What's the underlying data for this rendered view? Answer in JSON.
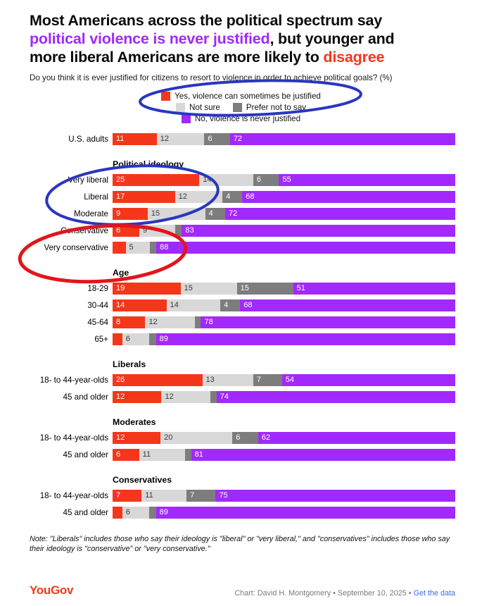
{
  "title": {
    "line1": "Most Americans across the political spectrum say",
    "line2_highlight": "political violence is never justified",
    "line2_rest": ", but younger and",
    "line3": "more liberal Americans are more likely to ",
    "line3_highlight": "disagree"
  },
  "subtitle": "Do you think it is ever justified for citizens to resort to violence in order to achieve political goals? (%)",
  "legend": [
    {
      "label": "Yes, violence can sometimes be justified",
      "color": "#f4371b"
    },
    {
      "label": "Not sure",
      "color": "#d8d8d8"
    },
    {
      "label": "Prefer not to say",
      "color": "#7d7d7d"
    },
    {
      "label": "No, violence is never justified",
      "color": "#a229fc"
    }
  ],
  "annotation_colors": {
    "blue": "#2936c0",
    "red": "#e3151c"
  },
  "chart_data": {
    "type": "bar",
    "stacked": true,
    "orientation": "horizontal",
    "unit": "%",
    "xlim": [
      0,
      100
    ],
    "series": [
      "Yes, violence can sometimes be justified",
      "Not sure",
      "Prefer not to say",
      "No, violence is never justified"
    ],
    "series_keys": [
      "yes",
      "not-sure",
      "prefer-not-to-say",
      "never-justified"
    ],
    "series_colors": [
      "#f4371b",
      "#d8d8d8",
      "#7d7d7d",
      "#a229fc"
    ],
    "groups": [
      {
        "header": "",
        "rows": [
          {
            "label": "U.S. adults",
            "values": [
              11,
              12,
              6,
              72
            ],
            "labels": [
              "11",
              "12",
              "6",
              "72"
            ]
          }
        ]
      },
      {
        "header": "Political ideology",
        "rows": [
          {
            "label": "Very liberal",
            "values": [
              25,
              14,
              6,
              55
            ],
            "labels": [
              "25",
              "14",
              "6",
              "55"
            ]
          },
          {
            "label": "Liberal",
            "values": [
              17,
              12,
              4,
              68
            ],
            "labels": [
              "17",
              "12",
              "4",
              "68"
            ]
          },
          {
            "label": "Moderate",
            "values": [
              9,
              15,
              4,
              72
            ],
            "labels": [
              "9",
              "15",
              "4",
              "72"
            ]
          },
          {
            "label": "Conservative",
            "values": [
              6,
              9,
              2,
              83
            ],
            "labels": [
              "6",
              "9",
              "",
              "83"
            ]
          },
          {
            "label": "Very conservative",
            "values": [
              4,
              5,
              2,
              88
            ],
            "labels": [
              "",
              "5",
              "",
              "88"
            ]
          }
        ]
      },
      {
        "header": "Age",
        "rows": [
          {
            "label": "18-29",
            "values": [
              19,
              15,
              15,
              51
            ],
            "labels": [
              "19",
              "15",
              "15",
              "51"
            ]
          },
          {
            "label": "30-44",
            "values": [
              14,
              14,
              4,
              68
            ],
            "labels": [
              "14",
              "14",
              "4",
              "68"
            ]
          },
          {
            "label": "45-64",
            "values": [
              8,
              12,
              2,
              78
            ],
            "labels": [
              "8",
              "12",
              "",
              "78"
            ]
          },
          {
            "label": "65+",
            "values": [
              3,
              6,
              2,
              89
            ],
            "labels": [
              "",
              "6",
              "",
              "89"
            ]
          }
        ]
      },
      {
        "header": "Liberals",
        "rows": [
          {
            "label": "18- to 44-year-olds",
            "values": [
              26,
              13,
              7,
              54
            ],
            "labels": [
              "26",
              "13",
              "7",
              "54"
            ]
          },
          {
            "label": "45 and older",
            "values": [
              12,
              12,
              2,
              74
            ],
            "labels": [
              "12",
              "12",
              "",
              "74"
            ]
          }
        ]
      },
      {
        "header": "Moderates",
        "rows": [
          {
            "label": "18- to 44-year-olds",
            "values": [
              12,
              20,
              6,
              62
            ],
            "labels": [
              "12",
              "20",
              "6",
              "62"
            ]
          },
          {
            "label": "45 and older",
            "values": [
              6,
              11,
              2,
              81
            ],
            "labels": [
              "6",
              "11",
              "",
              "81"
            ]
          }
        ]
      },
      {
        "header": "Conservatives",
        "rows": [
          {
            "label": "18- to 44-year-olds",
            "values": [
              7,
              11,
              7,
              75
            ],
            "labels": [
              "7",
              "11",
              "7",
              "75"
            ]
          },
          {
            "label": "45 and older",
            "values": [
              3,
              6,
              2,
              89
            ],
            "labels": [
              "",
              "6",
              "",
              "89"
            ]
          }
        ]
      }
    ]
  },
  "note": "Note: \"Liberals\" includes those who say their ideology is \"liberal\" or \"very liberal,\" and \"conservatives\" includes those who say their ideology is \"conservative\" or \"very conservative.\"",
  "footer": {
    "logo": "YouGov",
    "credit": "Chart: David H. Montgomery • September 10, 2025 • ",
    "link": "Get the data"
  }
}
